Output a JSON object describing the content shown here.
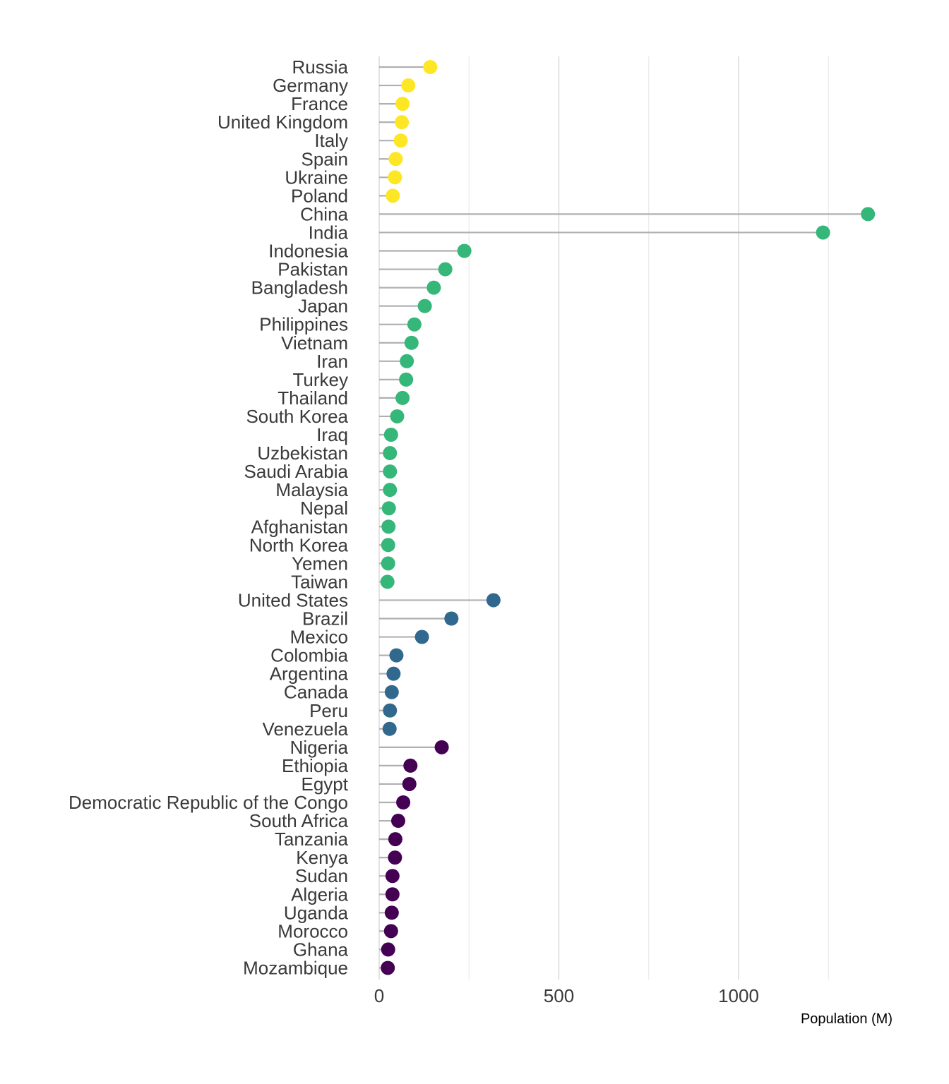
{
  "chart_data": {
    "type": "lollipop",
    "orientation": "horizontal",
    "xlabel": "Population (M)",
    "xlim": [
      0,
      1380
    ],
    "xticks": [
      0,
      500,
      1000
    ],
    "grid": true,
    "legend": "none",
    "group_colors": {
      "Europe": "#fde725",
      "Asia": "#35b779",
      "Americas": "#31688e",
      "Africa": "#440154"
    },
    "rows": [
      {
        "label": "Russia",
        "value": 142,
        "group": "Europe"
      },
      {
        "label": "Germany",
        "value": 81,
        "group": "Europe"
      },
      {
        "label": "France",
        "value": 65,
        "group": "Europe"
      },
      {
        "label": "United Kingdom",
        "value": 63,
        "group": "Europe"
      },
      {
        "label": "Italy",
        "value": 60,
        "group": "Europe"
      },
      {
        "label": "Spain",
        "value": 46,
        "group": "Europe"
      },
      {
        "label": "Ukraine",
        "value": 44,
        "group": "Europe"
      },
      {
        "label": "Poland",
        "value": 38,
        "group": "Europe"
      },
      {
        "label": "China",
        "value": 1360,
        "group": "Asia"
      },
      {
        "label": "India",
        "value": 1235,
        "group": "Asia"
      },
      {
        "label": "Indonesia",
        "value": 237,
        "group": "Asia"
      },
      {
        "label": "Pakistan",
        "value": 184,
        "group": "Asia"
      },
      {
        "label": "Bangladesh",
        "value": 152,
        "group": "Asia"
      },
      {
        "label": "Japan",
        "value": 127,
        "group": "Asia"
      },
      {
        "label": "Philippines",
        "value": 98,
        "group": "Asia"
      },
      {
        "label": "Vietnam",
        "value": 90,
        "group": "Asia"
      },
      {
        "label": "Iran",
        "value": 77,
        "group": "Asia"
      },
      {
        "label": "Turkey",
        "value": 75,
        "group": "Asia"
      },
      {
        "label": "Thailand",
        "value": 65,
        "group": "Asia"
      },
      {
        "label": "South Korea",
        "value": 50,
        "group": "Asia"
      },
      {
        "label": "Iraq",
        "value": 33,
        "group": "Asia"
      },
      {
        "label": "Uzbekistan",
        "value": 30,
        "group": "Asia"
      },
      {
        "label": "Saudi Arabia",
        "value": 30,
        "group": "Asia"
      },
      {
        "label": "Malaysia",
        "value": 30,
        "group": "Asia"
      },
      {
        "label": "Nepal",
        "value": 27,
        "group": "Asia"
      },
      {
        "label": "Afghanistan",
        "value": 26,
        "group": "Asia"
      },
      {
        "label": "North Korea",
        "value": 25,
        "group": "Asia"
      },
      {
        "label": "Yemen",
        "value": 25,
        "group": "Asia"
      },
      {
        "label": "Taiwan",
        "value": 23,
        "group": "Asia"
      },
      {
        "label": "United States",
        "value": 318,
        "group": "Americas"
      },
      {
        "label": "Brazil",
        "value": 201,
        "group": "Americas"
      },
      {
        "label": "Mexico",
        "value": 119,
        "group": "Americas"
      },
      {
        "label": "Colombia",
        "value": 48,
        "group": "Americas"
      },
      {
        "label": "Argentina",
        "value": 40,
        "group": "Americas"
      },
      {
        "label": "Canada",
        "value": 35,
        "group": "Americas"
      },
      {
        "label": "Peru",
        "value": 30,
        "group": "Americas"
      },
      {
        "label": "Venezuela",
        "value": 29,
        "group": "Americas"
      },
      {
        "label": "Nigeria",
        "value": 174,
        "group": "Africa"
      },
      {
        "label": "Ethiopia",
        "value": 87,
        "group": "Africa"
      },
      {
        "label": "Egypt",
        "value": 84,
        "group": "Africa"
      },
      {
        "label": "Democratic Republic of the Congo",
        "value": 67,
        "group": "Africa"
      },
      {
        "label": "South Africa",
        "value": 53,
        "group": "Africa"
      },
      {
        "label": "Tanzania",
        "value": 45,
        "group": "Africa"
      },
      {
        "label": "Kenya",
        "value": 44,
        "group": "Africa"
      },
      {
        "label": "Sudan",
        "value": 37,
        "group": "Africa"
      },
      {
        "label": "Algeria",
        "value": 37,
        "group": "Africa"
      },
      {
        "label": "Uganda",
        "value": 35,
        "group": "Africa"
      },
      {
        "label": "Morocco",
        "value": 33,
        "group": "Africa"
      },
      {
        "label": "Ghana",
        "value": 25,
        "group": "Africa"
      },
      {
        "label": "Mozambique",
        "value": 24,
        "group": "Africa"
      }
    ]
  }
}
